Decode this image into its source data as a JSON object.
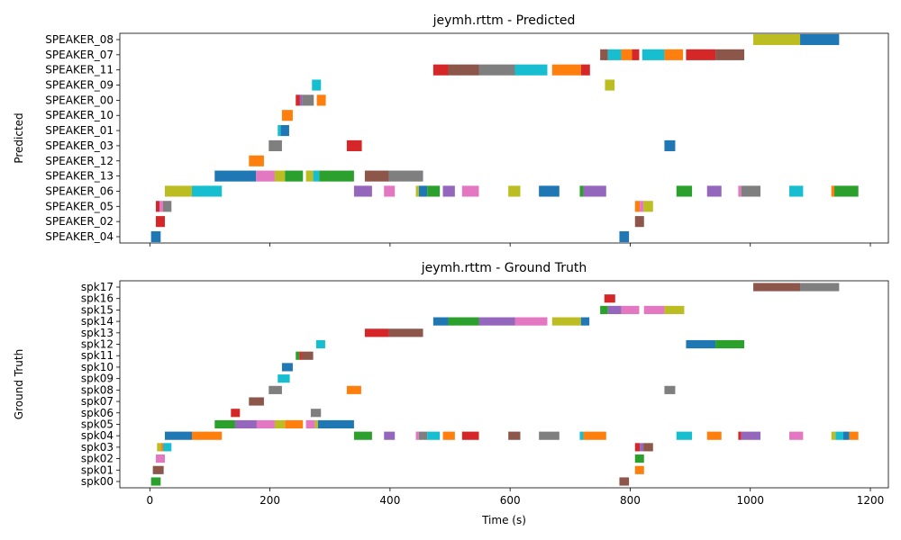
{
  "chart_data": [
    {
      "type": "timeline",
      "title": "jeymh.rttm - Predicted",
      "xlabel": "",
      "ylabel": "Predicted",
      "xlim": [
        -50,
        1230
      ],
      "xticks": [
        0,
        200,
        400,
        600,
        800,
        1000,
        1200
      ],
      "show_xticklabels": false,
      "grid": false,
      "rows": [
        "SPEAKER_08",
        "SPEAKER_07",
        "SPEAKER_11",
        "SPEAKER_09",
        "SPEAKER_00",
        "SPEAKER_10",
        "SPEAKER_01",
        "SPEAKER_03",
        "SPEAKER_12",
        "SPEAKER_13",
        "SPEAKER_06",
        "SPEAKER_05",
        "SPEAKER_02",
        "SPEAKER_04"
      ],
      "segments": [
        {
          "row": "SPEAKER_08",
          "start": 1005,
          "end": 1083,
          "color": "#bcbd22"
        },
        {
          "row": "SPEAKER_08",
          "start": 1083,
          "end": 1148,
          "color": "#1f77b4"
        },
        {
          "row": "SPEAKER_07",
          "start": 750,
          "end": 763,
          "color": "#8c564b"
        },
        {
          "row": "SPEAKER_07",
          "start": 763,
          "end": 785,
          "color": "#17becf"
        },
        {
          "row": "SPEAKER_07",
          "start": 785,
          "end": 803,
          "color": "#ff7f0e"
        },
        {
          "row": "SPEAKER_07",
          "start": 803,
          "end": 815,
          "color": "#d62728"
        },
        {
          "row": "SPEAKER_07",
          "start": 820,
          "end": 857,
          "color": "#17becf"
        },
        {
          "row": "SPEAKER_07",
          "start": 857,
          "end": 888,
          "color": "#ff7f0e"
        },
        {
          "row": "SPEAKER_07",
          "start": 893,
          "end": 942,
          "color": "#d62728"
        },
        {
          "row": "SPEAKER_07",
          "start": 942,
          "end": 990,
          "color": "#8c564b"
        },
        {
          "row": "SPEAKER_11",
          "start": 472,
          "end": 497,
          "color": "#d62728"
        },
        {
          "row": "SPEAKER_11",
          "start": 497,
          "end": 548,
          "color": "#8c564b"
        },
        {
          "row": "SPEAKER_11",
          "start": 548,
          "end": 608,
          "color": "#7f7f7f"
        },
        {
          "row": "SPEAKER_11",
          "start": 608,
          "end": 662,
          "color": "#17becf"
        },
        {
          "row": "SPEAKER_11",
          "start": 670,
          "end": 718,
          "color": "#ff7f0e"
        },
        {
          "row": "SPEAKER_11",
          "start": 718,
          "end": 733,
          "color": "#d62728"
        },
        {
          "row": "SPEAKER_09",
          "start": 270,
          "end": 285,
          "color": "#17becf"
        },
        {
          "row": "SPEAKER_09",
          "start": 758,
          "end": 774,
          "color": "#bcbd22"
        },
        {
          "row": "SPEAKER_00",
          "start": 243,
          "end": 250,
          "color": "#d62728"
        },
        {
          "row": "SPEAKER_00",
          "start": 250,
          "end": 254,
          "color": "#9467bd"
        },
        {
          "row": "SPEAKER_00",
          "start": 254,
          "end": 273,
          "color": "#7f7f7f"
        },
        {
          "row": "SPEAKER_00",
          "start": 278,
          "end": 293,
          "color": "#ff7f0e"
        },
        {
          "row": "SPEAKER_10",
          "start": 220,
          "end": 238,
          "color": "#ff7f0e"
        },
        {
          "row": "SPEAKER_01",
          "start": 213,
          "end": 218,
          "color": "#17becf"
        },
        {
          "row": "SPEAKER_01",
          "start": 218,
          "end": 232,
          "color": "#1f77b4"
        },
        {
          "row": "SPEAKER_03",
          "start": 198,
          "end": 220,
          "color": "#7f7f7f"
        },
        {
          "row": "SPEAKER_03",
          "start": 328,
          "end": 353,
          "color": "#d62728"
        },
        {
          "row": "SPEAKER_03",
          "start": 857,
          "end": 875,
          "color": "#1f77b4"
        },
        {
          "row": "SPEAKER_12",
          "start": 165,
          "end": 190,
          "color": "#ff7f0e"
        },
        {
          "row": "SPEAKER_13",
          "start": 108,
          "end": 177,
          "color": "#1f77b4"
        },
        {
          "row": "SPEAKER_13",
          "start": 177,
          "end": 208,
          "color": "#e377c2"
        },
        {
          "row": "SPEAKER_13",
          "start": 208,
          "end": 225,
          "color": "#bcbd22"
        },
        {
          "row": "SPEAKER_13",
          "start": 225,
          "end": 255,
          "color": "#2ca02c"
        },
        {
          "row": "SPEAKER_13",
          "start": 260,
          "end": 272,
          "color": "#bcbd22"
        },
        {
          "row": "SPEAKER_13",
          "start": 272,
          "end": 282,
          "color": "#17becf"
        },
        {
          "row": "SPEAKER_13",
          "start": 282,
          "end": 340,
          "color": "#2ca02c"
        },
        {
          "row": "SPEAKER_13",
          "start": 358,
          "end": 398,
          "color": "#8c564b"
        },
        {
          "row": "SPEAKER_13",
          "start": 398,
          "end": 455,
          "color": "#7f7f7f"
        },
        {
          "row": "SPEAKER_06",
          "start": 25,
          "end": 70,
          "color": "#bcbd22"
        },
        {
          "row": "SPEAKER_06",
          "start": 70,
          "end": 120,
          "color": "#17becf"
        },
        {
          "row": "SPEAKER_06",
          "start": 340,
          "end": 370,
          "color": "#9467bd"
        },
        {
          "row": "SPEAKER_06",
          "start": 390,
          "end": 408,
          "color": "#e377c2"
        },
        {
          "row": "SPEAKER_06",
          "start": 443,
          "end": 448,
          "color": "#bcbd22"
        },
        {
          "row": "SPEAKER_06",
          "start": 448,
          "end": 462,
          "color": "#1f77b4"
        },
        {
          "row": "SPEAKER_06",
          "start": 462,
          "end": 483,
          "color": "#2ca02c"
        },
        {
          "row": "SPEAKER_06",
          "start": 488,
          "end": 508,
          "color": "#9467bd"
        },
        {
          "row": "SPEAKER_06",
          "start": 520,
          "end": 548,
          "color": "#e377c2"
        },
        {
          "row": "SPEAKER_06",
          "start": 597,
          "end": 617,
          "color": "#bcbd22"
        },
        {
          "row": "SPEAKER_06",
          "start": 648,
          "end": 682,
          "color": "#1f77b4"
        },
        {
          "row": "SPEAKER_06",
          "start": 716,
          "end": 722,
          "color": "#2ca02c"
        },
        {
          "row": "SPEAKER_06",
          "start": 722,
          "end": 760,
          "color": "#9467bd"
        },
        {
          "row": "SPEAKER_06",
          "start": 877,
          "end": 903,
          "color": "#2ca02c"
        },
        {
          "row": "SPEAKER_06",
          "start": 928,
          "end": 952,
          "color": "#9467bd"
        },
        {
          "row": "SPEAKER_06",
          "start": 980,
          "end": 985,
          "color": "#e377c2"
        },
        {
          "row": "SPEAKER_06",
          "start": 985,
          "end": 1017,
          "color": "#7f7f7f"
        },
        {
          "row": "SPEAKER_06",
          "start": 1065,
          "end": 1088,
          "color": "#17becf"
        },
        {
          "row": "SPEAKER_06",
          "start": 1135,
          "end": 1140,
          "color": "#ff7f0e"
        },
        {
          "row": "SPEAKER_06",
          "start": 1140,
          "end": 1180,
          "color": "#2ca02c"
        },
        {
          "row": "SPEAKER_05",
          "start": 10,
          "end": 16,
          "color": "#d62728"
        },
        {
          "row": "SPEAKER_05",
          "start": 16,
          "end": 22,
          "color": "#e377c2"
        },
        {
          "row": "SPEAKER_05",
          "start": 22,
          "end": 36,
          "color": "#7f7f7f"
        },
        {
          "row": "SPEAKER_05",
          "start": 808,
          "end": 816,
          "color": "#ff7f0e"
        },
        {
          "row": "SPEAKER_05",
          "start": 816,
          "end": 822,
          "color": "#e377c2"
        },
        {
          "row": "SPEAKER_05",
          "start": 822,
          "end": 838,
          "color": "#bcbd22"
        },
        {
          "row": "SPEAKER_02",
          "start": 10,
          "end": 25,
          "color": "#d62728"
        },
        {
          "row": "SPEAKER_02",
          "start": 808,
          "end": 823,
          "color": "#8c564b"
        },
        {
          "row": "SPEAKER_04",
          "start": 2,
          "end": 18,
          "color": "#1f77b4"
        },
        {
          "row": "SPEAKER_04",
          "start": 782,
          "end": 798,
          "color": "#1f77b4"
        }
      ]
    },
    {
      "type": "timeline",
      "title": "jeymh.rttm - Ground Truth",
      "xlabel": "Time (s)",
      "ylabel": "Ground Truth",
      "xlim": [
        -50,
        1230
      ],
      "xticks": [
        0,
        200,
        400,
        600,
        800,
        1000,
        1200
      ],
      "show_xticklabels": true,
      "grid": false,
      "rows": [
        "spk17",
        "spk16",
        "spk15",
        "spk14",
        "spk13",
        "spk12",
        "spk11",
        "spk10",
        "spk09",
        "spk08",
        "spk07",
        "spk06",
        "spk05",
        "spk04",
        "spk03",
        "spk02",
        "spk01",
        "spk00"
      ],
      "segments": [
        {
          "row": "spk17",
          "start": 1005,
          "end": 1083,
          "color": "#8c564b"
        },
        {
          "row": "spk17",
          "start": 1083,
          "end": 1148,
          "color": "#7f7f7f"
        },
        {
          "row": "spk16",
          "start": 757,
          "end": 775,
          "color": "#d62728"
        },
        {
          "row": "spk15",
          "start": 750,
          "end": 763,
          "color": "#2ca02c"
        },
        {
          "row": "spk15",
          "start": 763,
          "end": 785,
          "color": "#9467bd"
        },
        {
          "row": "spk15",
          "start": 785,
          "end": 815,
          "color": "#e377c2"
        },
        {
          "row": "spk15",
          "start": 823,
          "end": 857,
          "color": "#e377c2"
        },
        {
          "row": "spk15",
          "start": 857,
          "end": 890,
          "color": "#bcbd22"
        },
        {
          "row": "spk14",
          "start": 472,
          "end": 497,
          "color": "#1f77b4"
        },
        {
          "row": "spk14",
          "start": 497,
          "end": 548,
          "color": "#2ca02c"
        },
        {
          "row": "spk14",
          "start": 548,
          "end": 608,
          "color": "#9467bd"
        },
        {
          "row": "spk14",
          "start": 608,
          "end": 662,
          "color": "#e377c2"
        },
        {
          "row": "spk14",
          "start": 670,
          "end": 718,
          "color": "#bcbd22"
        },
        {
          "row": "spk14",
          "start": 718,
          "end": 732,
          "color": "#1f77b4"
        },
        {
          "row": "spk13",
          "start": 358,
          "end": 398,
          "color": "#d62728"
        },
        {
          "row": "spk13",
          "start": 398,
          "end": 455,
          "color": "#8c564b"
        },
        {
          "row": "spk12",
          "start": 277,
          "end": 292,
          "color": "#17becf"
        },
        {
          "row": "spk12",
          "start": 893,
          "end": 942,
          "color": "#1f77b4"
        },
        {
          "row": "spk12",
          "start": 942,
          "end": 990,
          "color": "#2ca02c"
        },
        {
          "row": "spk11",
          "start": 243,
          "end": 249,
          "color": "#2ca02c"
        },
        {
          "row": "spk11",
          "start": 249,
          "end": 253,
          "color": "#d62728"
        },
        {
          "row": "spk11",
          "start": 253,
          "end": 272,
          "color": "#8c564b"
        },
        {
          "row": "spk10",
          "start": 220,
          "end": 238,
          "color": "#1f77b4"
        },
        {
          "row": "spk09",
          "start": 213,
          "end": 233,
          "color": "#17becf"
        },
        {
          "row": "spk08",
          "start": 198,
          "end": 220,
          "color": "#7f7f7f"
        },
        {
          "row": "spk08",
          "start": 328,
          "end": 352,
          "color": "#ff7f0e"
        },
        {
          "row": "spk08",
          "start": 857,
          "end": 875,
          "color": "#7f7f7f"
        },
        {
          "row": "spk07",
          "start": 165,
          "end": 190,
          "color": "#8c564b"
        },
        {
          "row": "spk06",
          "start": 135,
          "end": 150,
          "color": "#d62728"
        },
        {
          "row": "spk06",
          "start": 268,
          "end": 285,
          "color": "#7f7f7f"
        },
        {
          "row": "spk05",
          "start": 108,
          "end": 142,
          "color": "#2ca02c"
        },
        {
          "row": "spk05",
          "start": 142,
          "end": 178,
          "color": "#9467bd"
        },
        {
          "row": "spk05",
          "start": 178,
          "end": 208,
          "color": "#e377c2"
        },
        {
          "row": "spk05",
          "start": 208,
          "end": 225,
          "color": "#bcbd22"
        },
        {
          "row": "spk05",
          "start": 225,
          "end": 255,
          "color": "#ff7f0e"
        },
        {
          "row": "spk05",
          "start": 260,
          "end": 275,
          "color": "#e377c2"
        },
        {
          "row": "spk05",
          "start": 275,
          "end": 280,
          "color": "#bcbd22"
        },
        {
          "row": "spk05",
          "start": 280,
          "end": 340,
          "color": "#1f77b4"
        },
        {
          "row": "spk04",
          "start": 25,
          "end": 70,
          "color": "#1f77b4"
        },
        {
          "row": "spk04",
          "start": 70,
          "end": 120,
          "color": "#ff7f0e"
        },
        {
          "row": "spk04",
          "start": 340,
          "end": 370,
          "color": "#2ca02c"
        },
        {
          "row": "spk04",
          "start": 390,
          "end": 408,
          "color": "#9467bd"
        },
        {
          "row": "spk04",
          "start": 443,
          "end": 448,
          "color": "#e377c2"
        },
        {
          "row": "spk04",
          "start": 448,
          "end": 462,
          "color": "#7f7f7f"
        },
        {
          "row": "spk04",
          "start": 462,
          "end": 483,
          "color": "#17becf"
        },
        {
          "row": "spk04",
          "start": 488,
          "end": 508,
          "color": "#ff7f0e"
        },
        {
          "row": "spk04",
          "start": 520,
          "end": 548,
          "color": "#d62728"
        },
        {
          "row": "spk04",
          "start": 597,
          "end": 617,
          "color": "#8c564b"
        },
        {
          "row": "spk04",
          "start": 648,
          "end": 682,
          "color": "#7f7f7f"
        },
        {
          "row": "spk04",
          "start": 716,
          "end": 722,
          "color": "#17becf"
        },
        {
          "row": "spk04",
          "start": 722,
          "end": 760,
          "color": "#ff7f0e"
        },
        {
          "row": "spk04",
          "start": 877,
          "end": 903,
          "color": "#17becf"
        },
        {
          "row": "spk04",
          "start": 928,
          "end": 952,
          "color": "#ff7f0e"
        },
        {
          "row": "spk04",
          "start": 980,
          "end": 985,
          "color": "#d62728"
        },
        {
          "row": "spk04",
          "start": 985,
          "end": 1017,
          "color": "#9467bd"
        },
        {
          "row": "spk04",
          "start": 1065,
          "end": 1088,
          "color": "#e377c2"
        },
        {
          "row": "spk04",
          "start": 1135,
          "end": 1142,
          "color": "#bcbd22"
        },
        {
          "row": "spk04",
          "start": 1142,
          "end": 1155,
          "color": "#17becf"
        },
        {
          "row": "spk04",
          "start": 1155,
          "end": 1165,
          "color": "#1f77b4"
        },
        {
          "row": "spk04",
          "start": 1165,
          "end": 1180,
          "color": "#ff7f0e"
        },
        {
          "row": "spk03",
          "start": 12,
          "end": 18,
          "color": "#bcbd22"
        },
        {
          "row": "spk03",
          "start": 18,
          "end": 22,
          "color": "#ff7f0e"
        },
        {
          "row": "spk03",
          "start": 22,
          "end": 36,
          "color": "#17becf"
        },
        {
          "row": "spk03",
          "start": 808,
          "end": 816,
          "color": "#d62728"
        },
        {
          "row": "spk03",
          "start": 816,
          "end": 822,
          "color": "#9467bd"
        },
        {
          "row": "spk03",
          "start": 822,
          "end": 838,
          "color": "#8c564b"
        },
        {
          "row": "spk02",
          "start": 10,
          "end": 25,
          "color": "#e377c2"
        },
        {
          "row": "spk02",
          "start": 808,
          "end": 823,
          "color": "#2ca02c"
        },
        {
          "row": "spk01",
          "start": 5,
          "end": 23,
          "color": "#8c564b"
        },
        {
          "row": "spk01",
          "start": 808,
          "end": 823,
          "color": "#ff7f0e"
        },
        {
          "row": "spk00",
          "start": 2,
          "end": 18,
          "color": "#2ca02c"
        },
        {
          "row": "spk00",
          "start": 782,
          "end": 798,
          "color": "#8c564b"
        }
      ]
    }
  ]
}
